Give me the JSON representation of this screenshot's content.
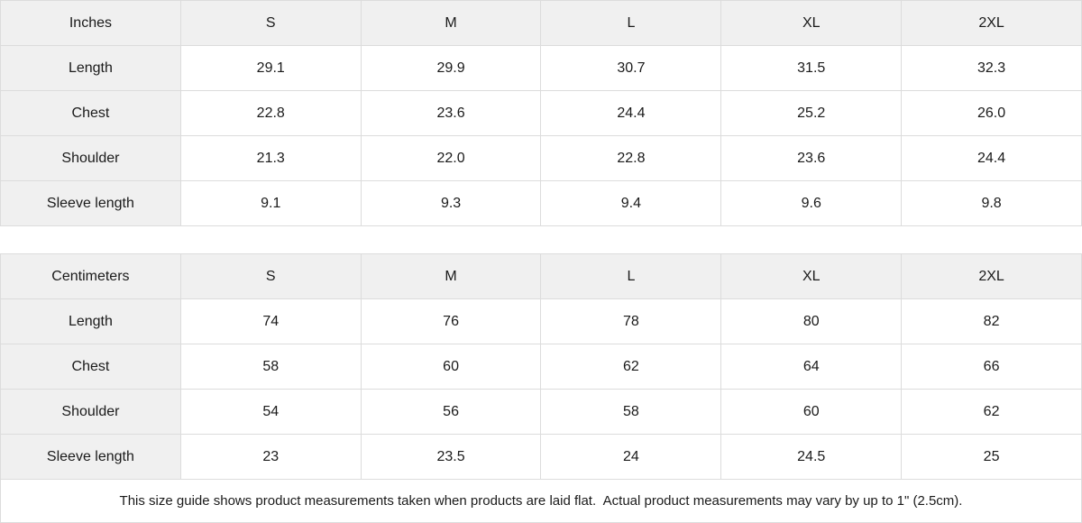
{
  "colors": {
    "header_bg": "#f0f0f0",
    "border": "#dcdcdc",
    "text": "#1a1a1a"
  },
  "tables": [
    {
      "unit_label": "Inches",
      "sizes": [
        "S",
        "M",
        "L",
        "XL",
        "2XL"
      ],
      "rows": [
        {
          "label": "Length",
          "values": [
            "29.1",
            "29.9",
            "30.7",
            "31.5",
            "32.3"
          ]
        },
        {
          "label": "Chest",
          "values": [
            "22.8",
            "23.6",
            "24.4",
            "25.2",
            "26.0"
          ]
        },
        {
          "label": "Shoulder",
          "values": [
            "21.3",
            "22.0",
            "22.8",
            "23.6",
            "24.4"
          ]
        },
        {
          "label": "Sleeve length",
          "values": [
            "9.1",
            "9.3",
            "9.4",
            "9.6",
            "9.8"
          ]
        }
      ]
    },
    {
      "unit_label": "Centimeters",
      "sizes": [
        "S",
        "M",
        "L",
        "XL",
        "2XL"
      ],
      "rows": [
        {
          "label": "Length",
          "values": [
            "74",
            "76",
            "78",
            "80",
            "82"
          ]
        },
        {
          "label": "Chest",
          "values": [
            "58",
            "60",
            "62",
            "64",
            "66"
          ]
        },
        {
          "label": "Shoulder",
          "values": [
            "54",
            "56",
            "58",
            "60",
            "62"
          ]
        },
        {
          "label": "Sleeve length",
          "values": [
            "23",
            "23.5",
            "24",
            "24.5",
            "25"
          ]
        }
      ]
    }
  ],
  "footer_note": "This size guide shows product measurements taken when products are laid flat.  Actual product measurements may vary by up to 1\" (2.5cm)."
}
